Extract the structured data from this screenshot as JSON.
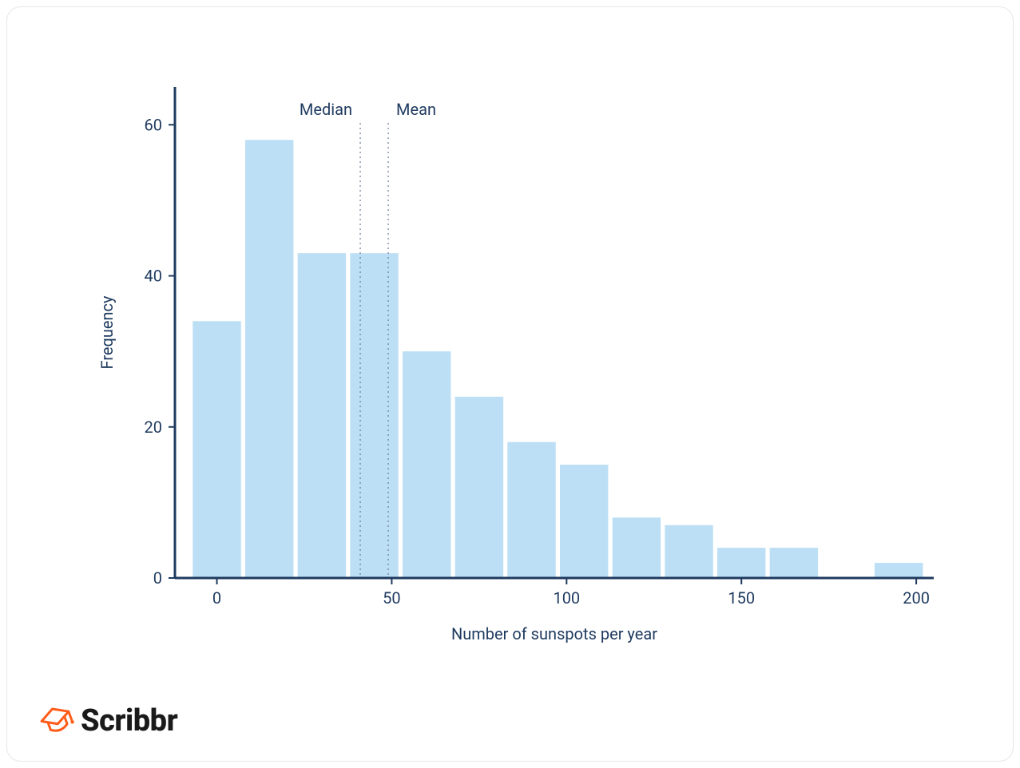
{
  "chart": {
    "type": "histogram",
    "xlabel": "Number of sunspots per year",
    "ylabel": "Frequency",
    "label_fontsize": 20,
    "label_color": "#1e3a5f",
    "tick_fontsize": 20,
    "tick_color": "#1e3a5f",
    "axis_color": "#1e3a5f",
    "axis_width": 3,
    "background_color": "#ffffff",
    "bar_color": "#bcdff5",
    "bar_gap_ratio": 0.08,
    "xlim": [
      -12,
      205
    ],
    "ylim": [
      0,
      65
    ],
    "xticks": [
      0,
      50,
      100,
      150,
      200
    ],
    "yticks": [
      0,
      20,
      40,
      60
    ],
    "bin_width": 15,
    "bins": [
      {
        "start": -7.5,
        "value": 34
      },
      {
        "start": 7.5,
        "value": 58
      },
      {
        "start": 22.5,
        "value": 43
      },
      {
        "start": 37.5,
        "value": 43
      },
      {
        "start": 52.5,
        "value": 30
      },
      {
        "start": 67.5,
        "value": 24
      },
      {
        "start": 82.5,
        "value": 18
      },
      {
        "start": 97.5,
        "value": 15
      },
      {
        "start": 112.5,
        "value": 8
      },
      {
        "start": 127.5,
        "value": 7
      },
      {
        "start": 142.5,
        "value": 4
      },
      {
        "start": 157.5,
        "value": 4
      },
      {
        "start": 172.5,
        "value": 0
      },
      {
        "start": 187.5,
        "value": 2
      }
    ],
    "reference_lines": [
      {
        "x": 41,
        "label": "Median",
        "label_side": "left"
      },
      {
        "x": 49,
        "label": "Mean",
        "label_side": "right"
      }
    ],
    "refline_color": "#6b7a99",
    "refline_dash": "2,4",
    "refline_width": 1.2,
    "refline_label_fontsize": 20,
    "refline_label_color": "#1e3a5f"
  },
  "logo": {
    "text": "Scribbr",
    "icon_color": "#ff5c1a",
    "text_color": "#1a1a1a"
  }
}
